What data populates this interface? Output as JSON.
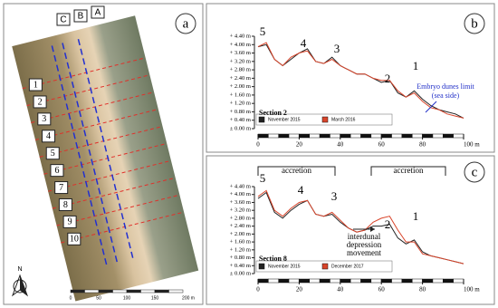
{
  "panel_labels": [
    "a",
    "b",
    "c"
  ],
  "aerial": {
    "lines": [
      "C",
      "B",
      "A"
    ],
    "transects": [
      "1",
      "2",
      "3",
      "4",
      "5",
      "6",
      "7",
      "8",
      "9",
      "10"
    ],
    "scale": [
      "0",
      "50",
      "100",
      "150",
      "200 m"
    ],
    "north": "N"
  },
  "chart_data": [
    {
      "type": "line",
      "section": "Section 2",
      "xlim": [
        0,
        100
      ],
      "ylim": [
        0,
        4.4
      ],
      "x": [
        0,
        4,
        8,
        12,
        16,
        20,
        24,
        28,
        32,
        36,
        40,
        44,
        48,
        52,
        56,
        60,
        64,
        68,
        72,
        76,
        80,
        84,
        88,
        92,
        96,
        100
      ],
      "xticks": [
        0,
        20,
        40,
        60,
        80,
        {
          "value": 100,
          "label": "100 m"
        }
      ],
      "yticks": [
        {
          "value": 0,
          "label": "± 0.00 m"
        },
        {
          "value": 0.4,
          "label": "+ 0.40 m"
        },
        {
          "value": 0.8,
          "label": "+ 0.80 m"
        },
        {
          "value": 1.2,
          "label": "+ 1.20 m"
        },
        {
          "value": 1.6,
          "label": "+ 1.60 m"
        },
        {
          "value": 2.0,
          "label": "+ 2.00 m"
        },
        {
          "value": 2.4,
          "label": "+ 2.40 m"
        },
        {
          "value": 2.8,
          "label": "+ 2.80 m"
        },
        {
          "value": 3.2,
          "label": "+ 3.20 m"
        },
        {
          "value": 3.6,
          "label": "+ 3.60 m"
        },
        {
          "value": 4.0,
          "label": "+ 4.00 m"
        },
        {
          "value": 4.4,
          "label": "+ 4.40 m"
        }
      ],
      "series": [
        {
          "name": "November 2015",
          "color": "#222222",
          "values": [
            3.9,
            4.0,
            3.3,
            3.0,
            3.3,
            3.6,
            3.8,
            3.2,
            3.1,
            3.4,
            3.0,
            2.8,
            2.6,
            2.6,
            2.4,
            2.2,
            2.3,
            1.7,
            1.5,
            1.8,
            1.4,
            1.1,
            0.9,
            0.8,
            0.7,
            0.5
          ]
        },
        {
          "name": "March 2016",
          "color": "#d9452b",
          "values": [
            3.9,
            4.1,
            3.3,
            3.0,
            3.4,
            3.6,
            3.7,
            3.2,
            3.1,
            3.3,
            3.0,
            2.8,
            2.6,
            2.6,
            2.4,
            2.3,
            2.3,
            1.8,
            1.5,
            1.7,
            1.3,
            1.0,
            0.9,
            0.7,
            0.6,
            0.5
          ]
        }
      ],
      "annotations": [
        "5",
        "4",
        "3",
        "2",
        "1"
      ],
      "notes": [
        "Embryo dunes limit",
        "(sea side)"
      ]
    },
    {
      "type": "line",
      "section": "Section 8",
      "xlim": [
        0,
        100
      ],
      "ylim": [
        0,
        4.4
      ],
      "x": [
        0,
        4,
        8,
        12,
        16,
        20,
        24,
        28,
        32,
        36,
        40,
        44,
        48,
        52,
        56,
        60,
        64,
        68,
        72,
        76,
        80,
        84,
        88,
        92,
        96,
        100
      ],
      "xticks": [
        0,
        20,
        40,
        60,
        80,
        {
          "value": 100,
          "label": "100 m"
        }
      ],
      "yticks": [
        {
          "value": 0,
          "label": "± 0.00 m"
        },
        {
          "value": 0.4,
          "label": "+ 0.40 m"
        },
        {
          "value": 0.8,
          "label": "+ 0.80 m"
        },
        {
          "value": 1.2,
          "label": "+ 1.20 m"
        },
        {
          "value": 1.6,
          "label": "+ 1.60 m"
        },
        {
          "value": 2.0,
          "label": "+ 2.00 m"
        },
        {
          "value": 2.4,
          "label": "+ 2.40 m"
        },
        {
          "value": 2.8,
          "label": "+ 2.80 m"
        },
        {
          "value": 3.2,
          "label": "+ 3.20 m"
        },
        {
          "value": 3.6,
          "label": "+ 3.60 m"
        },
        {
          "value": 4.0,
          "label": "+ 4.00 m"
        },
        {
          "value": 4.4,
          "label": "+ 4.40 m"
        }
      ],
      "series": [
        {
          "name": "November 2015",
          "color": "#222222",
          "values": [
            3.8,
            4.1,
            3.1,
            2.8,
            3.2,
            3.5,
            3.7,
            3.0,
            2.9,
            3.0,
            2.6,
            2.3,
            2.1,
            2.2,
            2.4,
            2.4,
            2.5,
            1.8,
            1.5,
            1.7,
            1.1,
            0.9,
            0.8,
            0.7,
            0.6,
            0.5
          ]
        },
        {
          "name": "December 2017",
          "color": "#d9452b",
          "values": [
            3.9,
            4.2,
            3.2,
            2.9,
            3.3,
            3.6,
            3.7,
            3.0,
            2.9,
            3.1,
            2.7,
            2.3,
            2.1,
            2.2,
            2.6,
            2.8,
            2.9,
            2.2,
            1.6,
            1.6,
            1.0,
            0.9,
            0.8,
            0.7,
            0.6,
            0.5
          ]
        }
      ],
      "annotations": [
        "5",
        "4",
        "3",
        "2",
        "1"
      ],
      "notes": [
        "accretion",
        "accretion",
        "interdunal",
        "depression",
        "movement"
      ]
    }
  ]
}
